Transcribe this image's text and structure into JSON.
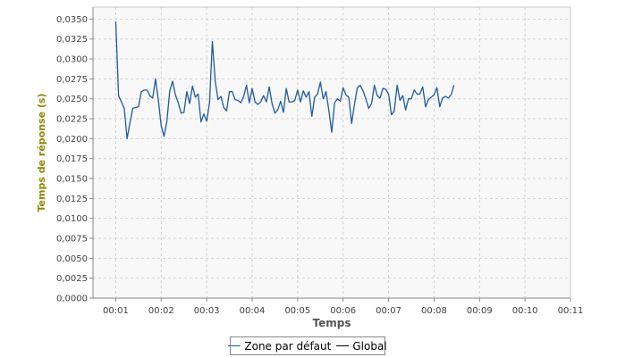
{
  "chart_data": {
    "type": "line",
    "title": "",
    "xlabel": "Temps",
    "ylabel": "Temps de réponse (s)",
    "xlim": [
      0.5,
      11
    ],
    "ylim": [
      0,
      0.0365
    ],
    "x_ticks": [
      "00:01",
      "00:02",
      "00:03",
      "00:04",
      "00:05",
      "00:06",
      "00:07",
      "00:08",
      "00:09",
      "00:10",
      "00:11"
    ],
    "y_ticks": [
      "0,0000",
      "0,0025",
      "0,0050",
      "0,0075",
      "0,0100",
      "0,0125",
      "0,0150",
      "0,0175",
      "0,0200",
      "0,0225",
      "0,0250",
      "0,0275",
      "0,0300",
      "0,0325",
      "0,0350"
    ],
    "grid": true,
    "legend": "bottom",
    "series": [
      {
        "name": "Zone par défaut",
        "color": "#1f5aa0",
        "x_start": 1.0,
        "x_step": 0.0625,
        "values": [
          0.0347,
          0.0254,
          0.0246,
          0.0238,
          0.02,
          0.022,
          0.0238,
          0.0239,
          0.024,
          0.0259,
          0.0261,
          0.0261,
          0.0254,
          0.0251,
          0.0275,
          0.0248,
          0.0216,
          0.0203,
          0.0222,
          0.026,
          0.0272,
          0.0255,
          0.0245,
          0.0232,
          0.0233,
          0.0259,
          0.0244,
          0.0266,
          0.0252,
          0.0256,
          0.0221,
          0.0231,
          0.0222,
          0.0245,
          0.0322,
          0.0272,
          0.0249,
          0.0253,
          0.0239,
          0.0235,
          0.0259,
          0.0259,
          0.0249,
          0.0248,
          0.0245,
          0.0253,
          0.0267,
          0.0245,
          0.0263,
          0.0246,
          0.0243,
          0.0246,
          0.0254,
          0.0246,
          0.0265,
          0.0244,
          0.0232,
          0.0236,
          0.0247,
          0.0233,
          0.0263,
          0.0246,
          0.0246,
          0.0248,
          0.0261,
          0.0246,
          0.026,
          0.0252,
          0.0259,
          0.0228,
          0.0252,
          0.0256,
          0.0271,
          0.025,
          0.0259,
          0.0235,
          0.0208,
          0.0245,
          0.025,
          0.0247,
          0.0264,
          0.0255,
          0.0252,
          0.0219,
          0.0243,
          0.0264,
          0.0267,
          0.026,
          0.025,
          0.0238,
          0.0244,
          0.0267,
          0.0254,
          0.0251,
          0.0263,
          0.0262,
          0.0256,
          0.023,
          0.0235,
          0.0267,
          0.0248,
          0.0254,
          0.0236,
          0.025,
          0.025,
          0.0261,
          0.0256,
          0.0256,
          0.0265,
          0.024,
          0.0249,
          0.0252,
          0.0255,
          0.0264,
          0.024,
          0.0251,
          0.0253,
          0.0251,
          0.0255,
          0.0267
        ]
      },
      {
        "name": "Global",
        "color": "#000000",
        "values": []
      }
    ]
  }
}
